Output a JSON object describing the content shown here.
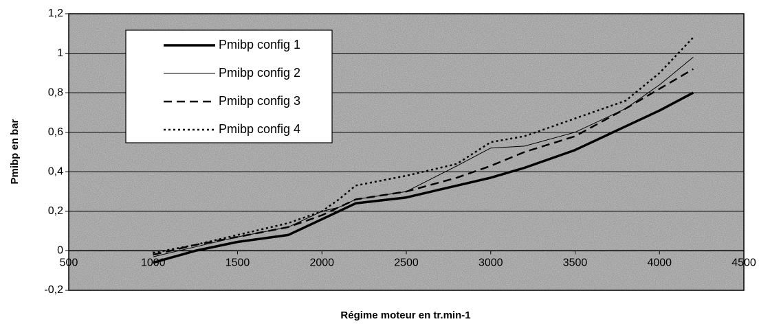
{
  "chart_data": {
    "type": "line",
    "x_label": "Régime moteur en tr.min-1",
    "y_label": "Pmibp en bar",
    "x": [
      1000,
      1250,
      1500,
      1800,
      2000,
      2100,
      2200,
      2500,
      2800,
      3000,
      3200,
      3500,
      3800,
      4000,
      4200
    ],
    "series": [
      {
        "name": "Pmibp config 1",
        "color": "#000000",
        "width": 3.5,
        "dash": "none",
        "values": [
          -0.06,
          0.0,
          0.045,
          0.08,
          0.16,
          0.2,
          0.24,
          0.27,
          0.33,
          0.37,
          0.42,
          0.51,
          0.63,
          0.71,
          0.8
        ]
      },
      {
        "name": "Pmibp config 2",
        "color": "#000000",
        "width": 1,
        "dash": "none",
        "values": [
          -0.03,
          0.02,
          0.07,
          0.12,
          0.2,
          0.22,
          0.26,
          0.3,
          0.43,
          0.52,
          0.53,
          0.6,
          0.72,
          0.84,
          0.98
        ]
      },
      {
        "name": "Pmibp config 3",
        "color": "#000000",
        "width": 2.5,
        "dash": "12 7",
        "values": [
          -0.02,
          0.03,
          0.07,
          0.12,
          0.18,
          0.22,
          0.26,
          0.3,
          0.37,
          0.43,
          0.5,
          0.58,
          0.72,
          0.82,
          0.92
        ]
      },
      {
        "name": "Pmibp config 4",
        "color": "#000000",
        "width": 2.5,
        "dash": "3 4",
        "values": [
          -0.01,
          0.03,
          0.08,
          0.14,
          0.2,
          0.26,
          0.33,
          0.38,
          0.44,
          0.55,
          0.58,
          0.67,
          0.76,
          0.9,
          1.08
        ]
      }
    ],
    "xlim": [
      500,
      4500
    ],
    "xticks": [
      500,
      1000,
      1500,
      2000,
      2500,
      3000,
      3500,
      4000,
      4500
    ],
    "ylim": [
      -0.2,
      1.2
    ],
    "yticks": [
      {
        "value": -0.2,
        "label": "-0,2"
      },
      0,
      {
        "value": 0.2,
        "label": "0,2"
      },
      {
        "value": 0.4,
        "label": "0,4"
      },
      {
        "value": 0.6,
        "label": "0,6"
      },
      {
        "value": 0.8,
        "label": "0,8"
      },
      1,
      {
        "value": 1.2,
        "label": "1,2"
      }
    ],
    "grid": true,
    "legend": "upper left"
  }
}
